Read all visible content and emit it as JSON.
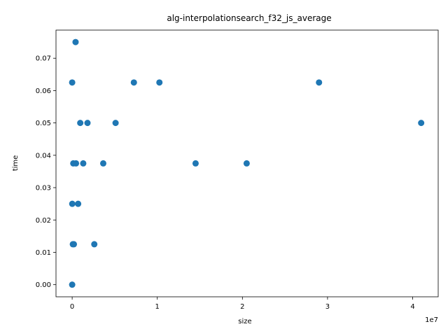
{
  "chart_data": {
    "type": "scatter",
    "title": "alg-interpolationsearch_f32_js_average",
    "xlabel": "size",
    "ylabel": "time",
    "x_offset_label": "1e7",
    "xlim": [
      -1900000.0,
      43000000.0
    ],
    "ylim": [
      -0.00375,
      0.0787
    ],
    "x_ticks": [
      0,
      10000000,
      20000000,
      30000000,
      40000000
    ],
    "x_tick_labels": [
      "0",
      "1",
      "2",
      "3",
      "4"
    ],
    "y_ticks": [
      0,
      0.01,
      0.02,
      0.03,
      0.04,
      0.05,
      0.06,
      0.07
    ],
    "y_tick_labels": [
      "0.00",
      "0.01",
      "0.02",
      "0.03",
      "0.04",
      "0.05",
      "0.06",
      "0.07"
    ],
    "grid": false,
    "marker_color": "#1f77b4",
    "points": [
      {
        "x": 0,
        "y": 0.0
      },
      {
        "x": 100,
        "y": 0.0625
      },
      {
        "x": 10000,
        "y": 0.025
      },
      {
        "x": 80000,
        "y": 0.0125
      },
      {
        "x": 130000,
        "y": 0.0375
      },
      {
        "x": 200000,
        "y": 0.0125
      },
      {
        "x": 400000,
        "y": 0.075
      },
      {
        "x": 450000,
        "y": 0.0375
      },
      {
        "x": 700000,
        "y": 0.025
      },
      {
        "x": 950000,
        "y": 0.05
      },
      {
        "x": 1300000,
        "y": 0.0375
      },
      {
        "x": 1800000,
        "y": 0.05
      },
      {
        "x": 2600000,
        "y": 0.0125
      },
      {
        "x": 3650000,
        "y": 0.0375
      },
      {
        "x": 5100000,
        "y": 0.05
      },
      {
        "x": 7250000,
        "y": 0.0625
      },
      {
        "x": 10250000,
        "y": 0.0625
      },
      {
        "x": 14500000,
        "y": 0.0375
      },
      {
        "x": 20500000,
        "y": 0.0375
      },
      {
        "x": 29000000,
        "y": 0.0625
      },
      {
        "x": 41000000,
        "y": 0.05
      }
    ]
  }
}
